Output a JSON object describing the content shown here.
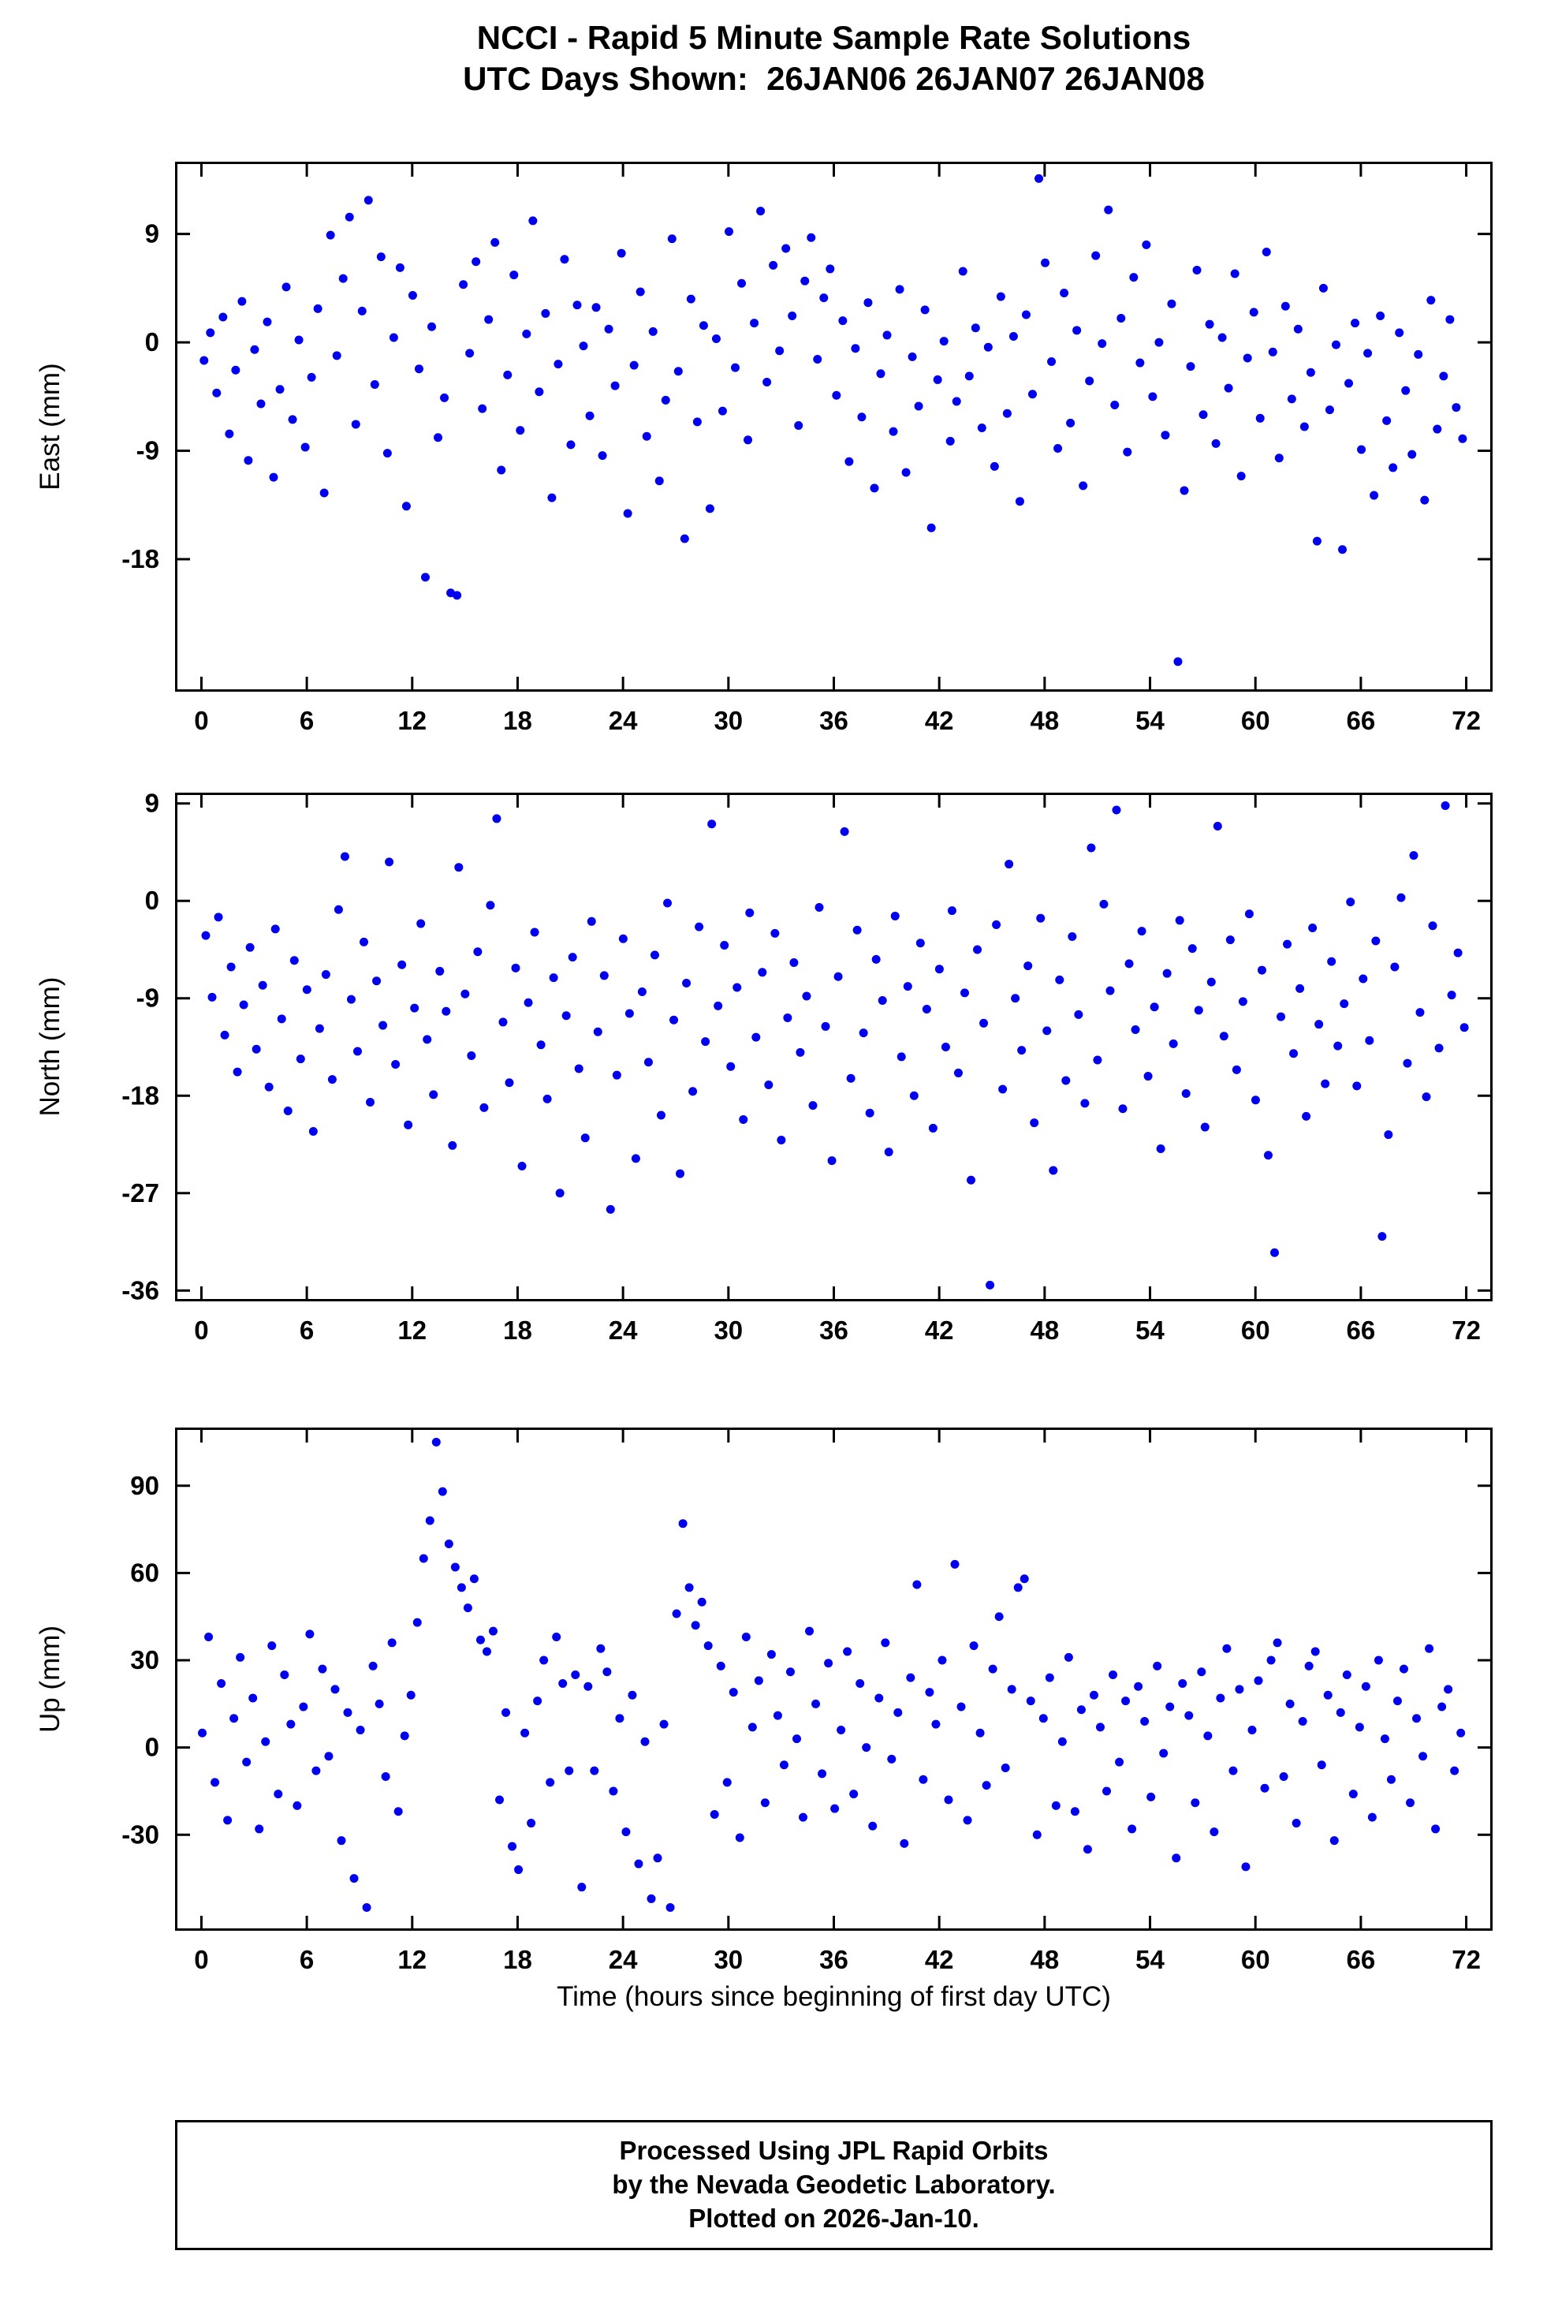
{
  "title": {
    "line1": "NCCI - Rapid 5 Minute Sample Rate Solutions",
    "line2": "UTC Days Shown:  26JAN06 26JAN07 26JAN08"
  },
  "xlabel": "Time (hours since beginning of first day UTC)",
  "footer": {
    "line1": "Processed Using JPL Rapid Orbits",
    "line2": "by the Nevada Geodetic Laboratory.",
    "line3": "Plotted on 2026-Jan-10."
  },
  "colors": {
    "point": "#0000ee",
    "axis": "#000000"
  },
  "chart_data": [
    {
      "type": "scatter",
      "name": "east",
      "ylabel": "East (mm)",
      "xlim": [
        -1.5,
        73.5
      ],
      "ylim": [
        -29,
        15
      ],
      "xticks": [
        0,
        6,
        12,
        18,
        24,
        30,
        36,
        42,
        48,
        54,
        60,
        66,
        72
      ],
      "yticks": [
        9,
        0,
        -9,
        -18
      ],
      "x_start": 0.15,
      "x_step": 0.36,
      "y": [
        -1.5,
        0.8,
        -4.2,
        2.1,
        -7.6,
        -2.3,
        3.4,
        -9.8,
        -0.6,
        -5.1,
        1.7,
        -11.2,
        -3.9,
        4.6,
        -6.4,
        0.2,
        -8.7,
        -2.9,
        2.8,
        -12.5,
        8.9,
        -1.1,
        5.3,
        10.4,
        -6.8,
        2.6,
        11.8,
        -3.5,
        7.1,
        -9.2,
        0.4,
        6.2,
        -13.6,
        3.9,
        -2.2,
        -19.5,
        1.3,
        -7.9,
        -4.6,
        -20.8,
        -21.0,
        4.8,
        -0.9,
        6.7,
        -5.5,
        1.9,
        8.3,
        -10.6,
        -2.7,
        5.6,
        -7.3,
        0.7,
        10.1,
        -4.1,
        2.4,
        -12.9,
        -1.8,
        6.9,
        -8.5,
        3.1,
        -0.3,
        -6.1,
        2.9,
        -9.4,
        1.1,
        -3.6,
        7.4,
        -14.2,
        -1.9,
        4.2,
        -7.8,
        0.9,
        -11.5,
        -4.8,
        8.6,
        -2.4,
        -16.3,
        3.6,
        -6.6,
        1.4,
        -13.8,
        0.3,
        -5.7,
        9.2,
        -2.1,
        4.9,
        -8.1,
        1.6,
        10.9,
        -3.3,
        6.4,
        -0.7,
        7.8,
        2.2,
        -6.9,
        5.1,
        8.7,
        -1.4,
        3.7,
        6.1,
        -4.4,
        1.8,
        -9.9,
        -0.5,
        -6.2,
        3.3,
        -12.1,
        -2.6,
        0.6,
        -7.4,
        4.4,
        -10.8,
        -1.2,
        -5.3,
        2.7,
        -15.4,
        -3.1,
        0.1,
        -8.2,
        -4.9,
        5.9,
        -2.8,
        1.2,
        -7.1,
        -0.4,
        -10.3,
        3.8,
        -5.9,
        0.5,
        -13.2,
        2.3,
        -4.3,
        13.6,
        6.6,
        -1.6,
        -8.8,
        4.1,
        -6.7,
        1.0,
        -11.9,
        -3.2,
        7.2,
        -0.1,
        11.0,
        -5.2,
        2.0,
        -9.1,
        5.4,
        -1.7,
        8.1,
        -4.5,
        0.0,
        -7.7,
        3.2,
        -26.5,
        -12.3,
        -2.0,
        6.0,
        -6.0,
        1.5,
        -8.4,
        0.4,
        -3.8,
        5.7,
        -11.1,
        -1.3,
        2.5,
        -6.3,
        7.5,
        -0.8,
        -9.6,
        3.0,
        -4.7,
        1.1,
        -7.0,
        -2.5,
        -16.5,
        4.5,
        -5.6,
        -0.2,
        -17.2,
        -3.4,
        1.6,
        -8.9,
        -0.9,
        -12.7,
        2.2,
        -6.5,
        -10.4,
        0.8,
        -4.0,
        -9.3,
        -1.0,
        -13.1,
        3.5,
        -7.2,
        -2.8,
        1.9,
        -5.4,
        -8.0
      ]
    },
    {
      "type": "scatter",
      "name": "north",
      "ylabel": "North (mm)",
      "xlim": [
        -1.5,
        73.5
      ],
      "ylim": [
        -37,
        10
      ],
      "xticks": [
        0,
        6,
        12,
        18,
        24,
        30,
        36,
        42,
        48,
        54,
        60,
        66,
        72
      ],
      "yticks": [
        9,
        0,
        -9,
        -18,
        -27,
        -36
      ],
      "x_start": 0.25,
      "x_step": 0.36,
      "y": [
        -3.2,
        -8.9,
        -1.5,
        -12.4,
        -6.1,
        -15.8,
        -9.6,
        -4.3,
        -13.7,
        -7.8,
        -17.2,
        -2.6,
        -10.9,
        -19.4,
        -5.5,
        -14.6,
        -8.2,
        -21.3,
        -11.8,
        -6.8,
        -16.5,
        -0.8,
        4.1,
        -9.1,
        -13.9,
        -3.8,
        -18.6,
        -7.4,
        -11.5,
        3.6,
        -15.1,
        -5.9,
        -20.7,
        -9.9,
        -2.1,
        -12.8,
        -17.9,
        -6.5,
        -10.2,
        -22.6,
        3.1,
        -8.6,
        -14.3,
        -4.7,
        -19.1,
        -0.4,
        7.6,
        -11.2,
        -16.8,
        -6.2,
        -24.5,
        -9.4,
        -2.9,
        -13.3,
        -18.3,
        -7.1,
        -27.0,
        -10.6,
        -5.2,
        -15.5,
        -21.9,
        -1.9,
        -12.1,
        -6.9,
        -28.5,
        -16.1,
        -3.5,
        -10.4,
        -23.8,
        -8.4,
        -14.9,
        -5.0,
        -19.8,
        -0.2,
        -11.0,
        -25.2,
        -7.6,
        -17.6,
        -2.4,
        -13.0,
        7.1,
        -9.7,
        -4.1,
        -15.3,
        -8.0,
        -20.2,
        -1.1,
        -12.6,
        -6.6,
        -17.0,
        -3.0,
        -22.1,
        -10.8,
        -5.7,
        -14.0,
        -8.8,
        -18.9,
        -0.6,
        -11.6,
        -24.0,
        -7.0,
        6.4,
        -16.4,
        -2.7,
        -12.2,
        -19.6,
        -5.4,
        -9.2,
        -23.2,
        -1.4,
        -14.4,
        -7.9,
        -18.0,
        -3.9,
        -10.0,
        -21.0,
        -6.3,
        -13.5,
        -0.9,
        -15.9,
        -8.5,
        -25.8,
        -4.5,
        -11.3,
        -35.5,
        -2.2,
        -17.4,
        3.4,
        -9.0,
        -13.8,
        -6.0,
        -20.5,
        -1.6,
        -12.0,
        -24.9,
        -7.3,
        -16.6,
        -3.3,
        -10.5,
        -18.7,
        4.9,
        -14.7,
        -0.3,
        -8.3,
        8.4,
        -19.2,
        -5.8,
        -11.9,
        -2.8,
        -16.2,
        -9.8,
        -22.9,
        -6.7,
        -13.2,
        -1.8,
        -17.8,
        -4.4,
        -10.1,
        -20.9,
        -7.5,
        6.9,
        -12.5,
        -3.6,
        -15.6,
        -9.3,
        -1.2,
        -18.4,
        -6.4,
        -23.5,
        -32.5,
        -10.7,
        -4.0,
        -14.1,
        -8.1,
        -19.9,
        -2.5,
        -11.4,
        -16.9,
        -5.6,
        -13.4,
        -9.5,
        -0.1,
        -17.1,
        -7.2,
        -12.9,
        -3.7,
        -31.0,
        -21.6,
        -6.1,
        0.3,
        -15.0,
        4.2,
        -10.3,
        -18.1,
        -2.3,
        -13.6,
        8.8,
        -8.7,
        -4.8,
        -11.7
      ]
    },
    {
      "type": "scatter",
      "name": "up",
      "ylabel": "Up (mm)",
      "xlim": [
        -1.5,
        73.5
      ],
      "ylim": [
        -63,
        110
      ],
      "xticks": [
        0,
        6,
        12,
        18,
        24,
        30,
        36,
        42,
        48,
        54,
        60,
        66,
        72
      ],
      "yticks": [
        90,
        60,
        30,
        0,
        -30
      ],
      "x_start": 0.05,
      "x_step": 0.36,
      "y": [
        5,
        38,
        -12,
        22,
        -25,
        10,
        31,
        -5,
        17,
        -28,
        2,
        35,
        -16,
        25,
        8,
        -20,
        14,
        39,
        -8,
        27,
        -3,
        20,
        -32,
        12,
        -45,
        6,
        -55,
        28,
        15,
        -10,
        36,
        -22,
        4,
        18,
        43,
        65,
        78,
        105,
        88,
        70,
        62,
        55,
        48,
        58,
        37,
        33,
        40,
        -18,
        12,
        -34,
        -42,
        5,
        -26,
        16,
        30,
        -12,
        38,
        22,
        -8,
        25,
        -48,
        21,
        -8,
        34,
        26,
        -15,
        10,
        -29,
        18,
        -40,
        2,
        -52,
        -38,
        8,
        -55,
        46,
        77,
        55,
        42,
        50,
        35,
        -23,
        28,
        -12,
        19,
        -31,
        38,
        7,
        23,
        -19,
        32,
        11,
        -6,
        26,
        3,
        -24,
        40,
        15,
        -9,
        29,
        -21,
        6,
        33,
        -16,
        22,
        0,
        -27,
        17,
        36,
        -4,
        12,
        -33,
        24,
        56,
        -11,
        19,
        8,
        30,
        -18,
        63,
        14,
        -25,
        35,
        5,
        -13,
        27,
        45,
        -7,
        20,
        55,
        58,
        16,
        -30,
        10,
        24,
        -20,
        2,
        31,
        -22,
        13,
        -35,
        18,
        7,
        -15,
        25,
        -5,
        16,
        -28,
        21,
        9,
        -17,
        28,
        -2,
        14,
        -38,
        22,
        11,
        -19,
        26,
        4,
        -29,
        17,
        34,
        -8,
        20,
        -41,
        6,
        23,
        -14,
        30,
        36,
        -10,
        15,
        -26,
        9,
        28,
        33,
        -6,
        18,
        -32,
        12,
        25,
        -16,
        7,
        21,
        -24,
        30,
        3,
        -11,
        16,
        27,
        -19,
        10,
        -3,
        34,
        -28,
        14,
        20,
        -8,
        5
      ]
    }
  ]
}
